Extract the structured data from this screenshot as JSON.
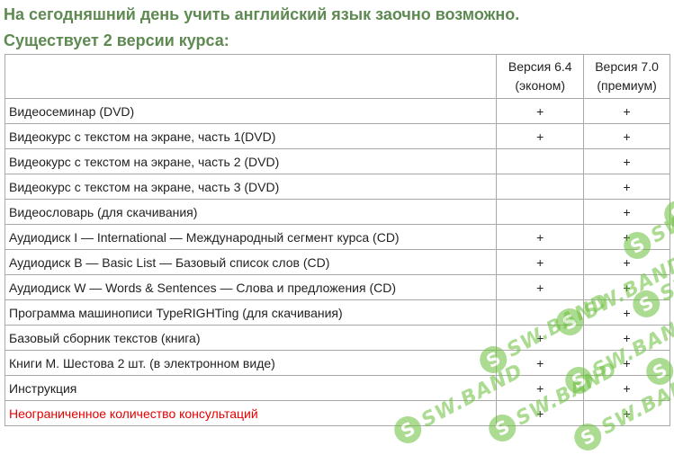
{
  "headings": {
    "line1": "На сегодняшний день учить английский язык заочно возможно.",
    "line2": "Существует 2 версии курса:"
  },
  "table": {
    "columns": [
      "",
      "Версия 6.4 (эконом)",
      "Версия 7.0 (премиум)"
    ],
    "column_lines": {
      "v64": [
        "Версия 6.4",
        "(эконом)"
      ],
      "v70": [
        "Версия 7.0",
        "(премиум)"
      ]
    },
    "rows": [
      {
        "label": "Видеосеминар (DVD)",
        "v64": "+",
        "v70": "+"
      },
      {
        "label": "Видеокурс с текстом на экране, часть 1(DVD)",
        "v64": "+",
        "v70": "+"
      },
      {
        "label": "Видеокурс с текстом на экране, часть 2 (DVD)",
        "v64": "",
        "v70": "+"
      },
      {
        "label": "Видеокурс с текстом на экране, часть 3 (DVD)",
        "v64": "",
        "v70": "+"
      },
      {
        "label": "Видеословарь (для скачивания)",
        "v64": "",
        "v70": "+"
      },
      {
        "label": "Аудиодиск I — International — Международный сегмент курса (CD)",
        "v64": "+",
        "v70": "+"
      },
      {
        "label": "Аудиодиск B — Basic List — Базовый список слов (CD)",
        "v64": "+",
        "v70": "+"
      },
      {
        "label": "Аудиодиск W — Words & Sentences — Слова и предложения (CD)",
        "v64": "+",
        "v70": "+"
      },
      {
        "label": "Программа машинописи TypeRIGHTing (для скачивания)",
        "v64": "",
        "v70": "+"
      },
      {
        "label": "Базовый сборник текстов (книга)",
        "v64": "+",
        "v70": "+"
      },
      {
        "label": "Книги М. Шестова 2 шт. (в электронном виде)",
        "v64": "+",
        "v70": "+"
      },
      {
        "label": "Инструкция",
        "v64": "+",
        "v70": "+"
      },
      {
        "label": "Неограниченное количество консультаций",
        "v64": "+",
        "v70": "+"
      }
    ]
  },
  "watermark": {
    "text": "SW.BAND",
    "icon": "S"
  },
  "colors": {
    "heading": "#5e8a52",
    "highlight_row": "#e60000",
    "watermark": "#6abf3a"
  }
}
